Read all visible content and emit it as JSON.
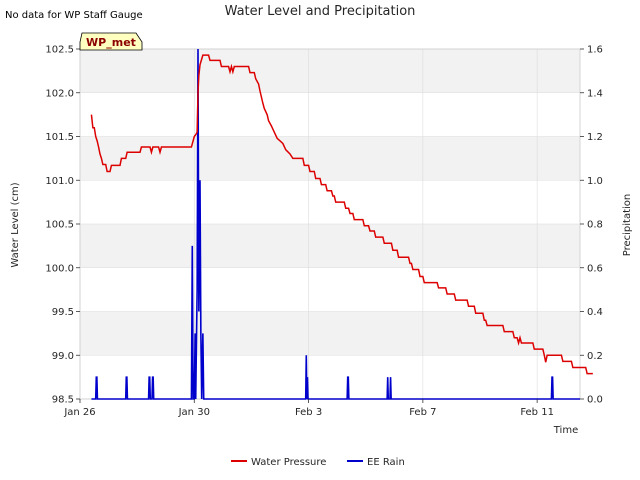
{
  "note_text": "No data for WP Staff Gauge",
  "badge_label": "WP_met",
  "chart_data": {
    "type": "line",
    "title": "Water Level and Precipitation",
    "xlabel": "Time",
    "ylabel": "Water Level (cm)",
    "y2label": "Precipitation",
    "x_unit": "days since Jan 26",
    "xlim": [
      0,
      17.5
    ],
    "ylim": [
      98.5,
      102.5
    ],
    "y2lim": [
      0.0,
      1.6
    ],
    "x_ticks": [
      {
        "value": 0,
        "label": "Jan 26"
      },
      {
        "value": 4,
        "label": "Jan 30"
      },
      {
        "value": 8,
        "label": "Feb 3"
      },
      {
        "value": 12,
        "label": "Feb 7"
      },
      {
        "value": 16,
        "label": "Feb 11"
      }
    ],
    "y_ticks": [
      98.5,
      99.0,
      99.5,
      100.0,
      100.5,
      101.0,
      101.5,
      102.0,
      102.5
    ],
    "y2_ticks": [
      0.0,
      0.2,
      0.4,
      0.6,
      0.8,
      1.0,
      1.2,
      1.4,
      1.6
    ],
    "colors": {
      "water_pressure": "#dd0000",
      "ee_rain": "#0000cc",
      "band": "#f2f2f2",
      "grid": "#dcdcdc"
    },
    "legend": [
      "Water Pressure",
      "EE Rain"
    ],
    "series": [
      {
        "name": "Water Pressure",
        "axis": "left",
        "points": [
          [
            0.4,
            101.75
          ],
          [
            0.45,
            101.6
          ],
          [
            0.5,
            101.6
          ],
          [
            0.55,
            101.5
          ],
          [
            0.6,
            101.45
          ],
          [
            0.65,
            101.38
          ],
          [
            0.7,
            101.3
          ],
          [
            0.75,
            101.25
          ],
          [
            0.8,
            101.18
          ],
          [
            0.9,
            101.18
          ],
          [
            0.95,
            101.1
          ],
          [
            1.05,
            101.1
          ],
          [
            1.1,
            101.17
          ],
          [
            1.4,
            101.17
          ],
          [
            1.45,
            101.25
          ],
          [
            1.6,
            101.25
          ],
          [
            1.65,
            101.32
          ],
          [
            2.1,
            101.32
          ],
          [
            2.15,
            101.38
          ],
          [
            2.45,
            101.38
          ],
          [
            2.5,
            101.32
          ],
          [
            2.55,
            101.38
          ],
          [
            2.75,
            101.38
          ],
          [
            2.8,
            101.32
          ],
          [
            2.85,
            101.38
          ],
          [
            3.9,
            101.38
          ],
          [
            4.0,
            101.5
          ],
          [
            4.05,
            101.52
          ],
          [
            4.1,
            101.55
          ],
          [
            4.13,
            102.0
          ],
          [
            4.16,
            102.2
          ],
          [
            4.2,
            102.32
          ],
          [
            4.3,
            102.43
          ],
          [
            4.5,
            102.43
          ],
          [
            4.55,
            102.37
          ],
          [
            4.9,
            102.37
          ],
          [
            4.95,
            102.3
          ],
          [
            5.2,
            102.3
          ],
          [
            5.25,
            102.24
          ],
          [
            5.3,
            102.3
          ],
          [
            5.35,
            102.24
          ],
          [
            5.4,
            102.3
          ],
          [
            5.9,
            102.3
          ],
          [
            5.95,
            102.23
          ],
          [
            6.1,
            102.23
          ],
          [
            6.15,
            102.16
          ],
          [
            6.25,
            102.1
          ],
          [
            6.3,
            102.02
          ],
          [
            6.35,
            101.95
          ],
          [
            6.4,
            101.88
          ],
          [
            6.45,
            101.82
          ],
          [
            6.55,
            101.75
          ],
          [
            6.6,
            101.68
          ],
          [
            6.7,
            101.62
          ],
          [
            6.8,
            101.55
          ],
          [
            6.9,
            101.48
          ],
          [
            7.1,
            101.42
          ],
          [
            7.2,
            101.35
          ],
          [
            7.35,
            101.3
          ],
          [
            7.45,
            101.25
          ],
          [
            7.8,
            101.25
          ],
          [
            7.85,
            101.17
          ],
          [
            8.0,
            101.17
          ],
          [
            8.05,
            101.1
          ],
          [
            8.2,
            101.1
          ],
          [
            8.25,
            101.02
          ],
          [
            8.4,
            101.02
          ],
          [
            8.45,
            100.95
          ],
          [
            8.6,
            100.95
          ],
          [
            8.65,
            100.88
          ],
          [
            8.8,
            100.88
          ],
          [
            8.85,
            100.82
          ],
          [
            8.9,
            100.82
          ],
          [
            8.95,
            100.75
          ],
          [
            9.25,
            100.75
          ],
          [
            9.3,
            100.68
          ],
          [
            9.4,
            100.68
          ],
          [
            9.45,
            100.62
          ],
          [
            9.55,
            100.62
          ],
          [
            9.6,
            100.55
          ],
          [
            9.9,
            100.55
          ],
          [
            9.95,
            100.48
          ],
          [
            10.1,
            100.48
          ],
          [
            10.15,
            100.42
          ],
          [
            10.3,
            100.42
          ],
          [
            10.35,
            100.35
          ],
          [
            10.6,
            100.35
          ],
          [
            10.65,
            100.28
          ],
          [
            10.9,
            100.28
          ],
          [
            10.95,
            100.2
          ],
          [
            11.1,
            100.2
          ],
          [
            11.15,
            100.12
          ],
          [
            11.5,
            100.12
          ],
          [
            11.55,
            100.05
          ],
          [
            11.6,
            100.05
          ],
          [
            11.65,
            99.98
          ],
          [
            11.85,
            99.98
          ],
          [
            11.9,
            99.9
          ],
          [
            12.0,
            99.9
          ],
          [
            12.05,
            99.83
          ],
          [
            12.5,
            99.83
          ],
          [
            12.55,
            99.77
          ],
          [
            12.8,
            99.77
          ],
          [
            12.85,
            99.7
          ],
          [
            13.1,
            99.7
          ],
          [
            13.15,
            99.63
          ],
          [
            13.55,
            99.63
          ],
          [
            13.6,
            99.56
          ],
          [
            13.8,
            99.56
          ],
          [
            13.85,
            99.48
          ],
          [
            14.1,
            99.48
          ],
          [
            14.15,
            99.4
          ],
          [
            14.2,
            99.4
          ],
          [
            14.25,
            99.34
          ],
          [
            14.8,
            99.34
          ],
          [
            14.85,
            99.27
          ],
          [
            15.15,
            99.27
          ],
          [
            15.2,
            99.2
          ],
          [
            15.3,
            99.2
          ],
          [
            15.35,
            99.14
          ],
          [
            15.4,
            99.2
          ],
          [
            15.45,
            99.14
          ],
          [
            15.85,
            99.14
          ],
          [
            15.9,
            99.07
          ],
          [
            16.2,
            99.07
          ],
          [
            16.25,
            99.0
          ],
          [
            16.3,
            98.92
          ],
          [
            16.35,
            99.0
          ],
          [
            16.85,
            99.0
          ],
          [
            16.9,
            98.93
          ],
          [
            17.2,
            98.93
          ],
          [
            17.25,
            98.86
          ],
          [
            17.7,
            98.86
          ],
          [
            17.75,
            98.79
          ],
          [
            17.95,
            98.79
          ]
        ]
      },
      {
        "name": "EE Rain",
        "axis": "right",
        "points": [
          [
            0.4,
            0.0
          ],
          [
            0.55,
            0.0
          ],
          [
            0.57,
            0.1
          ],
          [
            0.59,
            0.1
          ],
          [
            0.61,
            0.0
          ],
          [
            1.6,
            0.0
          ],
          [
            1.62,
            0.1
          ],
          [
            1.64,
            0.1
          ],
          [
            1.66,
            0.0
          ],
          [
            2.4,
            0.0
          ],
          [
            2.42,
            0.1
          ],
          [
            2.44,
            0.1
          ],
          [
            2.46,
            0.0
          ],
          [
            2.52,
            0.0
          ],
          [
            2.54,
            0.1
          ],
          [
            2.56,
            0.1
          ],
          [
            2.58,
            0.0
          ],
          [
            3.9,
            0.0
          ],
          [
            3.93,
            0.7
          ],
          [
            3.96,
            0.0
          ],
          [
            4.0,
            0.0
          ],
          [
            4.03,
            0.3
          ],
          [
            4.05,
            0.0
          ],
          [
            4.1,
            0.5
          ],
          [
            4.13,
            1.6
          ],
          [
            4.16,
            0.4
          ],
          [
            4.2,
            1.0
          ],
          [
            4.23,
            0.3
          ],
          [
            4.26,
            0.0
          ],
          [
            4.3,
            0.3
          ],
          [
            4.33,
            0.0
          ],
          [
            7.9,
            0.0
          ],
          [
            7.92,
            0.2
          ],
          [
            7.94,
            0.0
          ],
          [
            7.96,
            0.1
          ],
          [
            7.98,
            0.0
          ],
          [
            9.35,
            0.0
          ],
          [
            9.37,
            0.1
          ],
          [
            9.39,
            0.1
          ],
          [
            9.41,
            0.0
          ],
          [
            10.75,
            0.0
          ],
          [
            10.77,
            0.1
          ],
          [
            10.79,
            0.0
          ],
          [
            10.85,
            0.0
          ],
          [
            10.87,
            0.1
          ],
          [
            10.89,
            0.0
          ],
          [
            16.5,
            0.0
          ],
          [
            16.52,
            0.1
          ],
          [
            16.54,
            0.1
          ],
          [
            16.56,
            0.0
          ],
          [
            17.5,
            0.0
          ]
        ]
      }
    ]
  }
}
